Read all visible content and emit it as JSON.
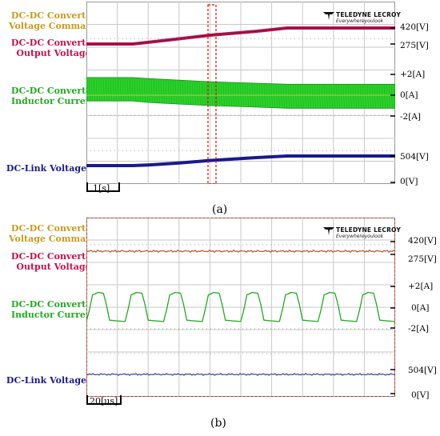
{
  "colors": {
    "voltage_command": "#c89b1e",
    "output_voltage": "#c8104a",
    "inductor_current": "#22aa22",
    "dc_link_voltage": "#1a1a8c",
    "inductor_fill_a": "#2bd12b"
  },
  "brand": {
    "name": "TELEDYNE LECROY",
    "tagline": "Everywhereyoulook",
    "icon": "teledyne-logo-icon"
  },
  "chart_data": [
    {
      "type": "line",
      "panel": "a",
      "caption": "(a)",
      "time_scale_label": "1[s]",
      "series_labels": {
        "voltage_command": [
          "DC-DC Converter",
          "Voltage Command"
        ],
        "output_voltage": [
          "DC-DC Converter",
          "Output Voltage"
        ],
        "inductor_current": [
          "DC-DC Converter",
          "Inductor Current"
        ],
        "dc_link_voltage": [
          "DC-Link Voltage"
        ]
      },
      "right_labels": [
        "420[V]",
        "275[V]",
        "+2[A]",
        "0[A]",
        "-2[A]",
        "504[V]",
        "0[V]"
      ],
      "x": [
        0,
        1,
        1.5,
        2,
        3,
        4,
        5.5,
        6.5,
        7,
        8,
        9,
        10
      ],
      "series": [
        {
          "name": "DC-DC Converter Voltage Command",
          "unit": "V",
          "values": [
            275,
            275,
            275,
            290,
            322,
            355,
            390,
            420,
            420,
            420,
            420,
            420
          ]
        },
        {
          "name": "DC-DC Converter Output Voltage",
          "unit": "V",
          "values": [
            275,
            275,
            275,
            290,
            322,
            355,
            390,
            420,
            420,
            420,
            420,
            420
          ]
        },
        {
          "name": "DC-DC Converter Inductor Current (envelope)",
          "unit": "A",
          "envelope_upper": [
            1.7,
            1.7,
            1.7,
            1.6,
            1.45,
            1.3,
            1.15,
            1.05,
            1.05,
            1.05,
            1.05,
            1.05
          ],
          "envelope_lower": [
            -0.55,
            -0.55,
            -0.55,
            -0.7,
            -0.85,
            -1.0,
            -1.15,
            -1.25,
            -1.25,
            -1.25,
            -1.25,
            -1.25
          ]
        },
        {
          "name": "DC-Link Voltage",
          "unit": "V",
          "values": [
            0,
            0,
            0,
            10,
            40,
            80,
            125,
            150,
            150,
            150,
            150,
            150
          ]
        }
      ],
      "grid": true
    },
    {
      "type": "line",
      "panel": "b",
      "caption": "(b)",
      "time_scale_label": "20[us]",
      "series_labels": {
        "voltage_command": [
          "DC-DC Converter",
          "Voltage Command"
        ],
        "output_voltage": [
          "DC-DC Converter",
          "Output Voltage"
        ],
        "inductor_current": [
          "DC-DC Converter",
          "Inductor Current"
        ],
        "dc_link_voltage": [
          "DC-Link Voltage"
        ]
      },
      "right_labels": [
        "420[V]",
        "275[V]",
        "+2[A]",
        "0[A]",
        "-2[A]",
        "504[V]",
        "0[V]"
      ],
      "periods": 8,
      "series": [
        {
          "name": "DC-DC Converter Output Voltage",
          "unit": "V",
          "level": 320
        },
        {
          "name": "DC-DC Converter Inductor Current",
          "unit": "A",
          "low": -0.65,
          "high": 0.75,
          "shape": "trapezoid-square"
        },
        {
          "name": "DC-Link Voltage",
          "unit": "V",
          "level": 150
        }
      ],
      "grid": true
    }
  ]
}
